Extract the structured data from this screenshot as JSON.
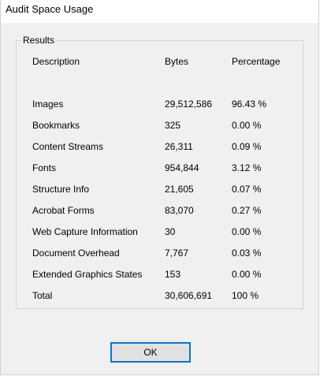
{
  "window": {
    "title": "Audit Space Usage"
  },
  "results": {
    "group_label": "Results",
    "headers": {
      "description": "Description",
      "bytes": "Bytes",
      "percentage": "Percentage"
    },
    "rows": [
      {
        "description": "Images",
        "bytes": "29,512,586",
        "percentage": "96.43 %"
      },
      {
        "description": "Bookmarks",
        "bytes": "325",
        "percentage": "0.00 %"
      },
      {
        "description": "Content Streams",
        "bytes": "26,311",
        "percentage": "0.09 %"
      },
      {
        "description": "Fonts",
        "bytes": "954,844",
        "percentage": "3.12 %"
      },
      {
        "description": "Structure Info",
        "bytes": "21,605",
        "percentage": "0.07 %"
      },
      {
        "description": "Acrobat Forms",
        "bytes": "83,070",
        "percentage": "0.27 %"
      },
      {
        "description": "Web Capture Information",
        "bytes": "30",
        "percentage": "0.00 %"
      },
      {
        "description": "Document Overhead",
        "bytes": "7,767",
        "percentage": "0.03 %"
      },
      {
        "description": "Extended Graphics States",
        "bytes": "153",
        "percentage": "0.00 %"
      },
      {
        "description": "Total",
        "bytes": "30,606,691",
        "percentage": "100 %"
      }
    ]
  },
  "buttons": {
    "ok_label": "OK"
  },
  "colors": {
    "dialog_background": "#f0f0f0",
    "button_focus_border": "#0078d7"
  }
}
